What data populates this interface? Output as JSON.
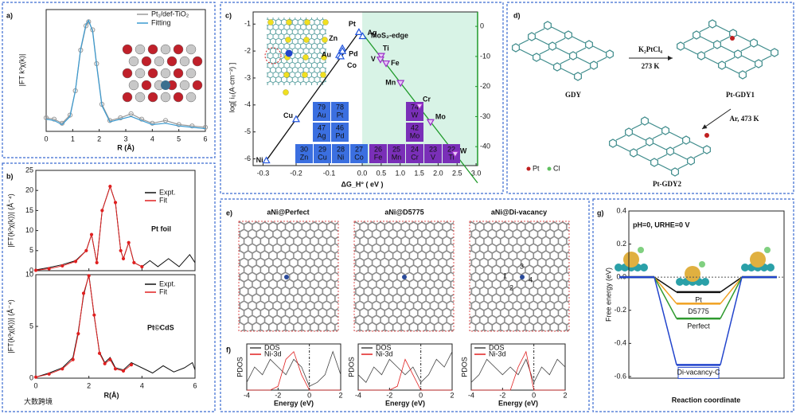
{
  "panel_labels": [
    "a)",
    "b)",
    "c)",
    "d)",
    "e)",
    "f)",
    "g)"
  ],
  "watermark": "大数跨境",
  "chart_data": [
    {
      "type": "line",
      "xlabel": "R (Å)",
      "ylabel": "|FT k³χ(k)|",
      "xlim": [
        0,
        6
      ],
      "xticks": [
        0,
        1,
        2,
        3,
        4,
        5,
        6
      ],
      "ylim": [
        0,
        9
      ],
      "x": [
        0,
        0.3,
        0.6,
        0.9,
        1.1,
        1.3,
        1.5,
        1.6,
        1.75,
        1.9,
        2.1,
        2.4,
        2.8,
        3.2,
        3.6,
        4.0,
        4.5,
        5.0,
        5.5,
        6.0
      ],
      "series": [
        {
          "name": "Pt₁/def-TiO₂",
          "color": "#9a9a9a",
          "marker": "circle",
          "values": [
            1.0,
            0.9,
            0.6,
            1.2,
            3.0,
            6.0,
            7.8,
            8.1,
            7.5,
            5.0,
            2.0,
            0.8,
            1.0,
            1.3,
            0.9,
            0.6,
            0.8,
            0.5,
            0.4,
            0.3
          ]
        },
        {
          "name": "Fitting",
          "color": "#3a9ad0",
          "values": [
            0.9,
            0.8,
            0.5,
            1.1,
            3.0,
            6.1,
            7.9,
            8.2,
            7.4,
            4.9,
            1.9,
            0.7,
            0.9,
            1.1,
            0.8,
            0.5,
            0.6,
            0.4,
            0.3,
            0.2
          ]
        }
      ]
    },
    {
      "type": "line",
      "ylabel": "|FT(k³χ(k))| (Å⁻⁴)",
      "annotations": [
        "Pt foil"
      ],
      "xlim": [
        0,
        6
      ],
      "xticks": [
        0,
        2,
        4,
        6
      ],
      "ylim": [
        0,
        25
      ],
      "yticks": [
        0,
        5,
        10,
        15,
        20,
        25
      ],
      "x": [
        0,
        0.5,
        1.0,
        1.5,
        1.9,
        2.1,
        2.3,
        2.5,
        2.8,
        3.0,
        3.2,
        3.3,
        3.5,
        3.7,
        4.0,
        4.3,
        4.6,
        5.0,
        5.4,
        5.8,
        6.0
      ],
      "series": [
        {
          "name": "Expt.",
          "color": "#111111",
          "values": [
            0.2,
            0.8,
            1.5,
            2.5,
            5,
            9,
            2,
            15,
            21,
            17,
            5,
            3,
            7,
            2,
            1,
            2.5,
            1,
            3,
            1,
            4,
            2
          ]
        },
        {
          "name": "Fit",
          "color": "#e02020",
          "marker": "dot",
          "values": [
            0.1,
            0.5,
            1.2,
            2.3,
            5,
            9,
            2,
            15,
            21,
            17,
            5,
            3,
            7,
            2,
            1,
            null,
            null,
            null,
            null,
            null,
            null
          ]
        }
      ]
    },
    {
      "type": "line",
      "xlabel": "R(Å)",
      "ylabel": "|FT(k³χ(k))| (Å⁻⁴)",
      "annotations": [
        "Pt©CdS"
      ],
      "xlim": [
        0,
        6
      ],
      "xticks": [
        0,
        2,
        4,
        6
      ],
      "ylim": [
        0,
        10
      ],
      "yticks": [
        0,
        5,
        10
      ],
      "x": [
        0,
        0.5,
        1.0,
        1.4,
        1.6,
        1.8,
        2.0,
        2.2,
        2.4,
        2.6,
        2.8,
        3.0,
        3.3,
        3.6,
        4.0,
        4.4,
        4.8,
        5.2,
        5.6,
        5.9,
        6.0
      ],
      "series": [
        {
          "name": "Expt.",
          "color": "#111111",
          "values": [
            0.1,
            0.5,
            1,
            2,
            4.5,
            8,
            10,
            6,
            2.5,
            1.5,
            2,
            1,
            0.8,
            1.5,
            1,
            0.5,
            1.2,
            0.6,
            1,
            1.5,
            0.8
          ]
        },
        {
          "name": "Fit",
          "color": "#e02020",
          "marker": "dot",
          "values": [
            0.1,
            0.4,
            0.9,
            1.8,
            4.3,
            8.2,
            9.9,
            6.1,
            2.4,
            1.4,
            1.8,
            0.9,
            0.7,
            1.3,
            null,
            null,
            null,
            null,
            null,
            null,
            null
          ]
        }
      ]
    },
    {
      "type": "scatter",
      "xlabel": "ΔG_H° ( eV )",
      "ylabel": "log[ i₀(A·cm⁻²) ]",
      "annotations": [
        "MoS₂-edge"
      ],
      "xlim": [
        -0.33,
        3.04
      ],
      "xticks": [
        -0.3,
        -0.2,
        -0.1,
        {
          "value": 0,
          "label": "0.0"
        },
        0.5,
        {
          "value": 1,
          "label": "1.0"
        },
        1.5,
        {
          "value": 2,
          "label": "2.0"
        },
        2.5,
        {
          "value": 3,
          "label": "3.0"
        }
      ],
      "ylim": [
        -6.25,
        -0.55
      ],
      "yticks": [
        -1,
        -2,
        -3,
        -4,
        -5,
        -6
      ],
      "y2lim": [
        -46.3,
        4.8
      ],
      "y2ticks": [
        0,
        -10,
        -20,
        -30,
        -40
      ],
      "y2color": "#1f9a2a",
      "shade": "#d8f3e6",
      "series": [
        {
          "color": "#2255dd",
          "labels": [
            "Ni",
            "Cu",
            "Zn",
            "Au",
            "Pd",
            "Co",
            "Pt",
            "Ag"
          ],
          "x": [
            -0.29,
            -0.2,
            -0.06,
            -0.07,
            -0.06,
            -0.065,
            -0.01,
            0.01
          ],
          "values": [
            -6.06,
            -4.53,
            -1.9,
            -2.15,
            -2.0,
            -2.2,
            -1.3,
            -1.45
          ]
        },
        {
          "color": "#9b30c8",
          "axis": "y2",
          "labels": [
            "Ti",
            "V",
            "Fe",
            "Mn",
            "Cr",
            "Mo",
            "W"
          ],
          "x": [
            0.5,
            0.48,
            0.63,
            1.01,
            1.51,
            1.8,
            2.45
          ],
          "values": [
            -9.8,
            -11,
            -12.3,
            -18.8,
            -26.5,
            -31.8,
            -42.4
          ]
        }
      ],
      "periodic_table": [
        {
          "number": 79,
          "symbol": "Au",
          "color": "#3b6fe0"
        },
        {
          "number": 78,
          "symbol": "Pt",
          "color": "#3b6fe0"
        },
        {
          "number": 47,
          "symbol": "Ag",
          "color": "#3b6fe0"
        },
        {
          "number": 46,
          "symbol": "Pd",
          "color": "#3b6fe0"
        },
        {
          "number": 30,
          "symbol": "Zn",
          "color": "#3b6fe0"
        },
        {
          "number": 29,
          "symbol": "Cu",
          "color": "#3b6fe0"
        },
        {
          "number": 28,
          "symbol": "Ni",
          "color": "#3b6fe0"
        },
        {
          "number": 27,
          "symbol": "Co",
          "color": "#3b6fe0"
        },
        {
          "number": 26,
          "symbol": "Fe",
          "color": "#7a2fb8"
        },
        {
          "number": 25,
          "symbol": "Mn",
          "color": "#7a2fb8"
        },
        {
          "number": 24,
          "symbol": "Cr",
          "color": "#7a2fb8"
        },
        {
          "number": 23,
          "symbol": "V",
          "color": "#7a2fb8"
        },
        {
          "number": 22,
          "symbol": "Ti",
          "color": "#7a2fb8"
        },
        {
          "number": 74,
          "symbol": "W",
          "color": "#7a2fb8"
        },
        {
          "number": 42,
          "symbol": "Mo",
          "color": "#7a2fb8"
        }
      ]
    },
    {
      "type": "line",
      "xlabel": "Energy (eV)",
      "ylabel": "PDOS",
      "xlim": [
        -4,
        2
      ],
      "xticks": [
        -4,
        -2,
        0,
        2
      ],
      "ylim": [
        0,
        6
      ],
      "x": [
        -4,
        -3.5,
        -3,
        -2.5,
        -2,
        -1.5,
        -1,
        -0.5,
        0,
        0.5,
        1,
        1.5,
        2
      ],
      "series": [
        {
          "name": "DOS",
          "color": "#444444",
          "values": [
            1,
            3,
            2,
            4,
            3,
            2,
            4,
            3,
            0.5,
            1,
            2,
            5,
            2
          ]
        },
        {
          "name": "Ni-3d",
          "color": "#e02020",
          "values": [
            0,
            0,
            0,
            0,
            0.5,
            4,
            5,
            2,
            0,
            0,
            0,
            0,
            0
          ]
        }
      ]
    },
    {
      "type": "line",
      "xlabel": "Energy (eV)",
      "ylabel": "PDOS",
      "xlim": [
        -4,
        2
      ],
      "xticks": [
        -4,
        -2,
        0,
        2
      ],
      "ylim": [
        0,
        6
      ],
      "x": [
        -4,
        -3.5,
        -3,
        -2.5,
        -2,
        -1.5,
        -1,
        -0.5,
        0,
        0.5,
        1,
        1.5,
        2
      ],
      "series": [
        {
          "name": "DOS",
          "color": "#444444",
          "values": [
            2,
            1,
            3,
            2,
            4,
            3,
            2,
            3,
            1,
            2,
            4,
            3,
            5
          ]
        },
        {
          "name": "Ni-3d",
          "color": "#e02020",
          "values": [
            0,
            0,
            0,
            0,
            0,
            0.5,
            4,
            2,
            0,
            0,
            0,
            0,
            0
          ]
        }
      ]
    },
    {
      "type": "line",
      "xlabel": "Energy (eV)",
      "ylabel": "PDOS",
      "xlim": [
        -4,
        2
      ],
      "xticks": [
        -4,
        -2,
        0,
        2
      ],
      "ylim": [
        0,
        6
      ],
      "x": [
        -4,
        -3.5,
        -3,
        -2.5,
        -2,
        -1.5,
        -1,
        -0.5,
        0,
        0.5,
        1,
        1.5,
        2
      ],
      "series": [
        {
          "name": "DOS",
          "color": "#444444",
          "values": [
            1,
            2,
            4,
            3,
            2,
            3,
            2,
            4,
            1,
            3,
            2,
            4,
            3
          ]
        },
        {
          "name": "Ni-3d",
          "color": "#e02020",
          "values": [
            0,
            0,
            0,
            0,
            0,
            0,
            3,
            5,
            0,
            0,
            0,
            0,
            0
          ]
        }
      ]
    },
    {
      "type": "level",
      "title": "pH=0, URHE=0 V",
      "xlabel": "Reaction coordinate",
      "ylabel": "Free energy (eV)",
      "ylim": [
        -0.61,
        0.4
      ],
      "yticks": [
        0.4,
        0.2,
        {
          "value": 0,
          "label": "0.0"
        },
        -0.2,
        -0.4,
        -0.6
      ],
      "series": [
        {
          "name": "Pt",
          "color": "#111111",
          "values": [
            0,
            -0.09,
            0
          ]
        },
        {
          "name": "D5775",
          "color": "#f0a020",
          "values": [
            0,
            -0.16,
            0
          ]
        },
        {
          "name": "Perfect",
          "color": "#2f9a2f",
          "values": [
            0,
            -0.25,
            0
          ]
        },
        {
          "name": "Di-vacancy-C",
          "color": "#2244cc",
          "values": [
            0,
            -0.53,
            0
          ]
        }
      ]
    }
  ],
  "panel_d": {
    "gdy": "GDY",
    "reagent": "K₂PtCl₄",
    "temp1": "273 K",
    "product1": "Pt-GDY1",
    "condition2": "Ar, 473 K",
    "product2": "Pt-GDY2",
    "legend": [
      "Pt",
      "Cl"
    ]
  },
  "panel_e": {
    "titles": [
      "aNi@Perfect",
      "aNi@D5775",
      "aNi@Di-vacancy"
    ],
    "title_colors": [
      "#6a9a2a",
      "#e88a20",
      "#3a6ad0"
    ],
    "site_labels": [
      "1",
      "2",
      "3",
      "4"
    ]
  }
}
